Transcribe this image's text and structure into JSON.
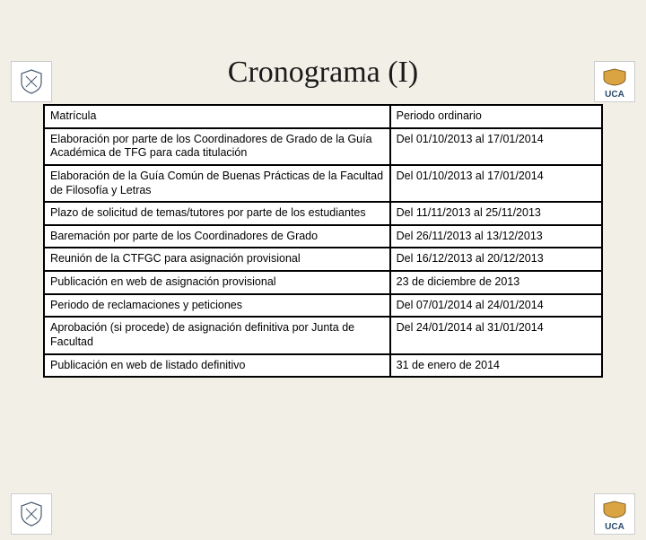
{
  "title": "Cronograma (I)",
  "logos": {
    "left_alt": "Faculty crest",
    "right_text": "UCA"
  },
  "table": {
    "columns": [
      "desc",
      "date"
    ],
    "column_widths": [
      "62%",
      "38%"
    ],
    "rows": [
      {
        "desc": "Matrícula",
        "date": "Periodo ordinario"
      },
      {
        "desc": "Elaboración por parte de los Coordinadores de Grado de la Guía Académica de TFG para cada titulación",
        "date": "Del 01/10/2013 al 17/01/2014"
      },
      {
        "desc": "Elaboración de la Guía Común de Buenas Prácticas de la Facultad de Filosofía y Letras",
        "date": "Del 01/10/2013 al 17/01/2014"
      },
      {
        "desc": "Plazo de solicitud de temas/tutores por parte de los estudiantes",
        "date": "Del 11/11/2013 al 25/11/2013",
        "justify": true
      },
      {
        "desc": "Baremación por parte de los Coordinadores de Grado",
        "date": "Del 26/11/2013 al 13/12/2013"
      },
      {
        "desc": "Reunión de la CTFGC para asignación provisional",
        "date": "Del 16/12/2013 al 20/12/2013"
      },
      {
        "desc": "Publicación en web de asignación provisional",
        "date": "23 de diciembre de 2013"
      },
      {
        "desc": "Periodo de reclamaciones y peticiones",
        "date": "Del 07/01/2014 al 24/01/2014"
      },
      {
        "desc": "Aprobación (si procede) de asignación definitiva por Junta de Facultad",
        "date": "Del 24/01/2014 al 31/01/2014"
      },
      {
        "desc": "Publicación en web de listado definitivo",
        "date": "31 de enero de 2014"
      }
    ]
  },
  "style": {
    "background_color": "#f2efe6",
    "title_fontsize": 34,
    "title_color": "#1a1a1a",
    "cell_fontsize": 12.5,
    "border_color": "#000000",
    "border_width": 2
  }
}
